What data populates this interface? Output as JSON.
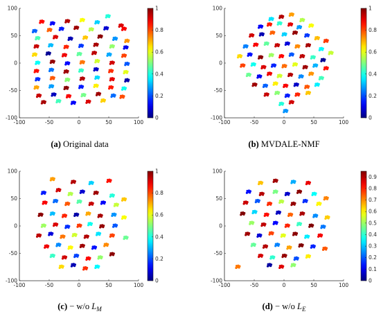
{
  "figure": {
    "panels": [
      {
        "id": "a",
        "caption_label": "(a)",
        "caption_text": "Original data",
        "caption_sub": ""
      },
      {
        "id": "b",
        "caption_label": "(b)",
        "caption_text": "MVDALE-NMF",
        "caption_sub": ""
      },
      {
        "id": "c",
        "caption_label": "(c)",
        "caption_text": "− w/o L",
        "caption_sub": "M"
      },
      {
        "id": "d",
        "caption_label": "(d)",
        "caption_text": "− w/o L",
        "caption_sub": "E"
      }
    ]
  },
  "chart_data": [
    {
      "type": "scatter",
      "panel": "a",
      "title": "",
      "xlabel": "",
      "ylabel": "",
      "xlim": [
        -100,
        100
      ],
      "ylim": [
        -100,
        100
      ],
      "x_ticks": [
        -100,
        -50,
        0,
        50,
        100
      ],
      "y_ticks": [
        -100,
        -50,
        0,
        50,
        100
      ],
      "colorbar": {
        "colormap": "jet",
        "range": [
          0,
          1
        ],
        "ticks": [
          0,
          0.2,
          0.4,
          0.6,
          0.8,
          1
        ]
      },
      "grid": false,
      "points": [
        [
          -63,
          75,
          0.87
        ],
        [
          -45,
          72,
          0.12
        ],
        [
          -20,
          76,
          0.95
        ],
        [
          5,
          78,
          0.62
        ],
        [
          30,
          74,
          0.33
        ],
        [
          48,
          85,
          0.41
        ],
        [
          70,
          68,
          0.91
        ],
        [
          -75,
          58,
          0.22
        ],
        [
          -50,
          60,
          0.78
        ],
        [
          -30,
          62,
          0.15
        ],
        [
          -5,
          64,
          0.97
        ],
        [
          20,
          61,
          0.55
        ],
        [
          45,
          63,
          0.08
        ],
        [
          75,
          62,
          0.88
        ],
        [
          -70,
          45,
          0.45
        ],
        [
          -40,
          47,
          0.91
        ],
        [
          -15,
          44,
          0.05
        ],
        [
          10,
          46,
          0.68
        ],
        [
          35,
          48,
          0.99
        ],
        [
          60,
          44,
          0.27
        ],
        [
          80,
          40,
          0.73
        ],
        [
          -72,
          30,
          0.93
        ],
        [
          -48,
          32,
          0.31
        ],
        [
          -22,
          29,
          0.84
        ],
        [
          3,
          31,
          0.18
        ],
        [
          28,
          33,
          0.96
        ],
        [
          55,
          30,
          0.52
        ],
        [
          78,
          28,
          0.11
        ],
        [
          -75,
          15,
          0.66
        ],
        [
          -52,
          17,
          0.02
        ],
        [
          -25,
          14,
          0.89
        ],
        [
          0,
          16,
          0.47
        ],
        [
          25,
          18,
          0.94
        ],
        [
          50,
          15,
          0.29
        ],
        [
          75,
          13,
          0.81
        ],
        [
          -70,
          0,
          0.38
        ],
        [
          -45,
          2,
          0.98
        ],
        [
          -20,
          -1,
          0.13
        ],
        [
          5,
          1,
          0.76
        ],
        [
          30,
          3,
          0.58
        ],
        [
          55,
          0,
          0.92
        ],
        [
          80,
          -2,
          0.21
        ],
        [
          -72,
          -15,
          0.86
        ],
        [
          -47,
          -13,
          0.24
        ],
        [
          -22,
          -16,
          0.97
        ],
        [
          3,
          -14,
          0.43
        ],
        [
          28,
          -12,
          0.07
        ],
        [
          53,
          -15,
          0.83
        ],
        [
          78,
          -17,
          0.6
        ],
        [
          -70,
          -30,
          0.17
        ],
        [
          -45,
          -28,
          0.79
        ],
        [
          -20,
          -31,
          0.51
        ],
        [
          5,
          -29,
          0.95
        ],
        [
          30,
          -27,
          0.34
        ],
        [
          55,
          -30,
          0.9
        ],
        [
          80,
          -32,
          0.04
        ],
        [
          -72,
          -45,
          0.71
        ],
        [
          -47,
          -43,
          0.28
        ],
        [
          -22,
          -46,
          0.99
        ],
        [
          3,
          -44,
          0.15
        ],
        [
          28,
          -42,
          0.64
        ],
        [
          53,
          -45,
          0.85
        ],
        [
          75,
          -47,
          0.39
        ],
        [
          -68,
          -60,
          0.93
        ],
        [
          -43,
          -58,
          0.06
        ],
        [
          -18,
          -61,
          0.88
        ],
        [
          7,
          -59,
          0.49
        ],
        [
          32,
          -57,
          0.97
        ],
        [
          57,
          -60,
          0.23
        ],
        [
          72,
          -62,
          0.8
        ],
        [
          -60,
          -72,
          0.96
        ],
        [
          -35,
          -70,
          0.44
        ],
        [
          -10,
          -73,
          0.12
        ],
        [
          15,
          -71,
          0.91
        ],
        [
          40,
          -69,
          0.67
        ]
      ]
    },
    {
      "type": "scatter",
      "panel": "b",
      "title": "",
      "xlabel": "",
      "ylabel": "",
      "xlim": [
        -100,
        100
      ],
      "ylim": [
        -100,
        100
      ],
      "x_ticks": [
        -100,
        -50,
        0,
        50,
        100
      ],
      "y_ticks": [
        -100,
        -50,
        0,
        50,
        100
      ],
      "colorbar": {
        "colormap": "jet",
        "range": [
          0,
          1
        ],
        "ticks": [
          0,
          0.2,
          0.4,
          0.6,
          0.8,
          1
        ]
      },
      "grid": false,
      "points": [
        [
          -5,
          84,
          0.95
        ],
        [
          12,
          88,
          0.72
        ],
        [
          -22,
          80,
          0.35
        ],
        [
          30,
          78,
          0.55
        ],
        [
          -40,
          66,
          0.12
        ],
        [
          -25,
          70,
          0.85
        ],
        [
          -8,
          72,
          0.42
        ],
        [
          10,
          70,
          0.9
        ],
        [
          25,
          65,
          0.28
        ],
        [
          45,
          68,
          0.62
        ],
        [
          -55,
          50,
          0.92
        ],
        [
          -38,
          52,
          0.05
        ],
        [
          -20,
          55,
          0.78
        ],
        [
          0,
          52,
          0.33
        ],
        [
          18,
          55,
          0.98
        ],
        [
          38,
          50,
          0.18
        ],
        [
          55,
          45,
          0.69
        ],
        [
          70,
          40,
          0.82
        ],
        [
          -65,
          30,
          0.25
        ],
        [
          -48,
          33,
          0.88
        ],
        [
          -30,
          35,
          0.47
        ],
        [
          -12,
          32,
          0.93
        ],
        [
          5,
          35,
          0.09
        ],
        [
          22,
          30,
          0.74
        ],
        [
          40,
          32,
          0.96
        ],
        [
          62,
          25,
          0.37
        ],
        [
          78,
          18,
          0.57
        ],
        [
          -75,
          12,
          0.66
        ],
        [
          -58,
          15,
          0.14
        ],
        [
          -40,
          10,
          0.99
        ],
        [
          -22,
          14,
          0.53
        ],
        [
          -5,
          12,
          0.87
        ],
        [
          12,
          15,
          0.21
        ],
        [
          30,
          12,
          0.94
        ],
        [
          48,
          10,
          0.43
        ],
        [
          65,
          5,
          0.02
        ],
        [
          -70,
          -5,
          0.81
        ],
        [
          -52,
          -3,
          0.39
        ],
        [
          -35,
          -8,
          0.91
        ],
        [
          -18,
          -5,
          0.16
        ],
        [
          0,
          -6,
          0.77
        ],
        [
          18,
          -3,
          0.6
        ],
        [
          35,
          -8,
          0.97
        ],
        [
          52,
          -5,
          0.3
        ],
        [
          70,
          -10,
          0.86
        ],
        [
          -60,
          -22,
          0.48
        ],
        [
          -42,
          -25,
          0.11
        ],
        [
          -25,
          -20,
          0.89
        ],
        [
          -8,
          -24,
          0.58
        ],
        [
          10,
          -22,
          0.95
        ],
        [
          28,
          -25,
          0.26
        ],
        [
          45,
          -20,
          0.73
        ],
        [
          62,
          -28,
          0.44
        ],
        [
          -50,
          -40,
          0.97
        ],
        [
          -32,
          -42,
          0.22
        ],
        [
          -15,
          -38,
          0.64
        ],
        [
          2,
          -42,
          0.88
        ],
        [
          20,
          -40,
          0.07
        ],
        [
          38,
          -44,
          0.79
        ],
        [
          55,
          -40,
          0.36
        ],
        [
          -30,
          -58,
          0.93
        ],
        [
          -12,
          -55,
          0.51
        ],
        [
          5,
          -60,
          0.15
        ],
        [
          22,
          -58,
          0.84
        ],
        [
          40,
          -55,
          0.68
        ],
        [
          -5,
          -75,
          0.41
        ],
        [
          12,
          -72,
          0.92
        ],
        [
          2,
          -88,
          0.27
        ]
      ]
    },
    {
      "type": "scatter",
      "panel": "c",
      "title": "",
      "xlabel": "",
      "ylabel": "",
      "xlim": [
        -100,
        100
      ],
      "ylim": [
        -100,
        100
      ],
      "x_ticks": [
        -100,
        -50,
        0,
        50,
        100
      ],
      "y_ticks": [
        -100,
        -50,
        0,
        50,
        100
      ],
      "colorbar": {
        "colormap": "jet",
        "range": [
          0,
          1
        ],
        "ticks": [
          0,
          0.2,
          0.4,
          0.6,
          0.8,
          1
        ]
      },
      "grid": false,
      "points": [
        [
          -45,
          85,
          0.72
        ],
        [
          -10,
          80,
          0.95
        ],
        [
          20,
          78,
          0.33
        ],
        [
          50,
          82,
          0.86
        ],
        [
          -60,
          60,
          0.15
        ],
        [
          -35,
          65,
          0.92
        ],
        [
          -15,
          58,
          0.55
        ],
        [
          5,
          62,
          0.08
        ],
        [
          28,
          60,
          0.97
        ],
        [
          55,
          55,
          0.41
        ],
        [
          75,
          48,
          0.68
        ],
        [
          -58,
          42,
          0.88
        ],
        [
          -40,
          45,
          0.23
        ],
        [
          -20,
          40,
          0.79
        ],
        [
          0,
          44,
          0.46
        ],
        [
          20,
          40,
          0.93
        ],
        [
          40,
          42,
          0.12
        ],
        [
          62,
          38,
          0.57
        ],
        [
          -65,
          20,
          0.99
        ],
        [
          -45,
          22,
          0.31
        ],
        [
          -25,
          18,
          0.84
        ],
        [
          -5,
          20,
          0.04
        ],
        [
          15,
          22,
          0.71
        ],
        [
          35,
          18,
          0.96
        ],
        [
          58,
          20,
          0.27
        ],
        [
          75,
          15,
          0.62
        ],
        [
          -60,
          0,
          0.53
        ],
        [
          -40,
          2,
          0.91
        ],
        [
          -20,
          -2,
          0.17
        ],
        [
          0,
          0,
          0.82
        ],
        [
          18,
          3,
          0.39
        ],
        [
          38,
          -1,
          0.98
        ],
        [
          60,
          0,
          0.21
        ],
        [
          -68,
          -18,
          0.94
        ],
        [
          -48,
          -15,
          0.09
        ],
        [
          -28,
          -20,
          0.76
        ],
        [
          -8,
          -17,
          0.58
        ],
        [
          12,
          -20,
          0.95
        ],
        [
          32,
          -15,
          0.35
        ],
        [
          55,
          -18,
          0.81
        ],
        [
          78,
          -22,
          0.48
        ],
        [
          -55,
          -38,
          0.89
        ],
        [
          -35,
          -35,
          0.26
        ],
        [
          -15,
          -40,
          0.63
        ],
        [
          5,
          -37,
          0.97
        ],
        [
          25,
          -40,
          0.14
        ],
        [
          45,
          -35,
          0.74
        ],
        [
          -45,
          -55,
          0.43
        ],
        [
          -25,
          -58,
          0.92
        ],
        [
          -5,
          -55,
          0.19
        ],
        [
          15,
          -60,
          0.87
        ],
        [
          35,
          -58,
          0.52
        ],
        [
          55,
          -52,
          0.99
        ],
        [
          -30,
          -75,
          0.66
        ],
        [
          -10,
          -72,
          0.05
        ],
        [
          10,
          -78,
          0.83
        ],
        [
          30,
          -75,
          0.37
        ]
      ]
    },
    {
      "type": "scatter",
      "panel": "d",
      "title": "",
      "xlabel": "",
      "ylabel": "",
      "xlim": [
        -100,
        100
      ],
      "ylim": [
        -100,
        100
      ],
      "x_ticks": [
        -100,
        -50,
        0,
        50,
        100
      ],
      "y_ticks": [
        -100,
        -50,
        0,
        50,
        100
      ],
      "colorbar": {
        "colormap": "jet",
        "range": [
          0,
          0.95
        ],
        "ticks": [
          0,
          0.1,
          0.2,
          0.3,
          0.4,
          0.5,
          0.6,
          0.7,
          0.8,
          0.9
        ]
      },
      "grid": false,
      "points": [
        [
          -40,
          78,
          0.65
        ],
        [
          -15,
          82,
          0.92
        ],
        [
          15,
          80,
          0.28
        ],
        [
          40,
          78,
          0.85
        ],
        [
          -60,
          62,
          0.13
        ],
        [
          -38,
          58,
          0.9
        ],
        [
          -15,
          62,
          0.47
        ],
        [
          5,
          58,
          0.07
        ],
        [
          25,
          62,
          0.94
        ],
        [
          50,
          58,
          0.36
        ],
        [
          70,
          50,
          0.71
        ],
        [
          -65,
          42,
          0.88
        ],
        [
          -45,
          45,
          0.2
        ],
        [
          -25,
          40,
          0.79
        ],
        [
          -5,
          44,
          0.53
        ],
        [
          15,
          40,
          0.93
        ],
        [
          35,
          45,
          0.16
        ],
        [
          58,
          40,
          0.6
        ],
        [
          -70,
          22,
          0.97
        ],
        [
          -50,
          25,
          0.32
        ],
        [
          -30,
          20,
          0.82
        ],
        [
          -10,
          24,
          0.06
        ],
        [
          10,
          20,
          0.74
        ],
        [
          30,
          22,
          0.91
        ],
        [
          52,
          18,
          0.25
        ],
        [
          72,
          15,
          0.64
        ],
        [
          -55,
          5,
          0.5
        ],
        [
          -35,
          2,
          0.89
        ],
        [
          -15,
          5,
          0.12
        ],
        [
          5,
          0,
          0.8
        ],
        [
          25,
          3,
          0.41
        ],
        [
          45,
          0,
          0.95
        ],
        [
          65,
          -2,
          0.23
        ],
        [
          -62,
          -15,
          0.92
        ],
        [
          -42,
          -18,
          0.08
        ],
        [
          -22,
          -14,
          0.77
        ],
        [
          -2,
          -18,
          0.57
        ],
        [
          18,
          -15,
          0.94
        ],
        [
          38,
          -20,
          0.34
        ],
        [
          60,
          -18,
          0.84
        ],
        [
          -52,
          -35,
          0.45
        ],
        [
          -32,
          -38,
          0.9
        ],
        [
          -12,
          -35,
          0.24
        ],
        [
          8,
          -40,
          0.68
        ],
        [
          28,
          -36,
          0.96
        ],
        [
          48,
          -38,
          0.15
        ],
        [
          68,
          -42,
          0.75
        ],
        [
          -40,
          -55,
          0.87
        ],
        [
          -20,
          -58,
          0.4
        ],
        [
          0,
          -55,
          0.93
        ],
        [
          20,
          -60,
          0.19
        ],
        [
          40,
          -56,
          0.61
        ],
        [
          -25,
          -72,
          0.03
        ],
        [
          -5,
          -75,
          0.86
        ],
        [
          15,
          -72,
          0.49
        ],
        [
          -78,
          -75,
          0.72
        ]
      ]
    }
  ]
}
